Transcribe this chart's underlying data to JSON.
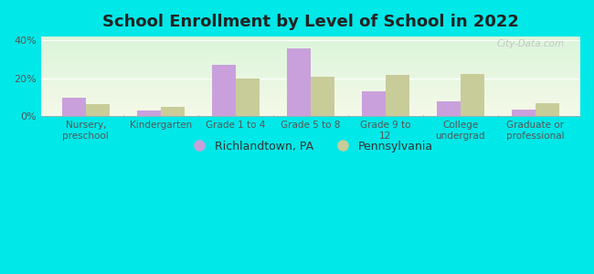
{
  "title": "School Enrollment by Level of School in 2022",
  "categories": [
    "Nursery,\npreschool",
    "Kindergarten",
    "Grade 1 to 4",
    "Grade 5 to 8",
    "Grade 9 to\n12",
    "College\nundergrad",
    "Graduate or\nprofessional"
  ],
  "richlandtown": [
    10,
    3,
    27,
    36,
    13,
    8,
    3.5
  ],
  "pennsylvania": [
    6.5,
    5,
    20,
    21,
    22,
    22.5,
    7
  ],
  "color_richlandtown": "#c9a0dc",
  "color_pennsylvania": "#c8cc99",
  "yticks": [
    0,
    20,
    40
  ],
  "ylabels": [
    "0%",
    "20%",
    "40%"
  ],
  "ylim": [
    0,
    42
  ],
  "background_color": "#00e8e8",
  "grad_top": "#daf5da",
  "grad_bottom": "#f5f8e8",
  "title_fontsize": 13,
  "tick_fontsize": 7.5,
  "legend_fontsize": 9,
  "watermark": "City-Data.com",
  "legend_richlandtown": "Richlandtown, PA",
  "legend_pennsylvania": "Pennsylvania"
}
